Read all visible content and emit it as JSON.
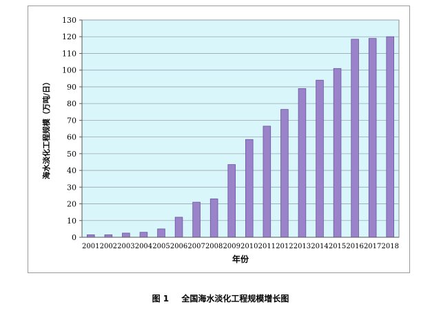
{
  "chart_data": {
    "type": "bar",
    "xlabel": "年份",
    "ylabel": "海水淡化工程规模（万吨/日）",
    "ylim": [
      0,
      130
    ],
    "yticks": [
      0,
      10,
      20,
      30,
      40,
      50,
      60,
      70,
      80,
      90,
      100,
      110,
      120,
      130
    ],
    "grid": true,
    "categories": [
      "2001",
      "2002",
      "2003",
      "2004",
      "2005",
      "2006",
      "2007",
      "2008",
      "2009",
      "2010",
      "2011",
      "2012",
      "2013",
      "2014",
      "2015",
      "2016",
      "2017",
      "2018"
    ],
    "values": [
      1.5,
      1.5,
      2.5,
      3,
      5,
      12,
      21,
      23,
      43.5,
      58.5,
      66.5,
      76.5,
      89,
      94,
      101,
      118.5,
      119,
      120
    ]
  },
  "caption": {
    "number": "图 1",
    "text": "全国海水淡化工程规模增长图"
  },
  "colors": {
    "plot_background": "#d9f7fb",
    "bar_fill": "#9b83c9",
    "bar_edge": "#6a53a3",
    "grid": "#9aa4b3"
  }
}
